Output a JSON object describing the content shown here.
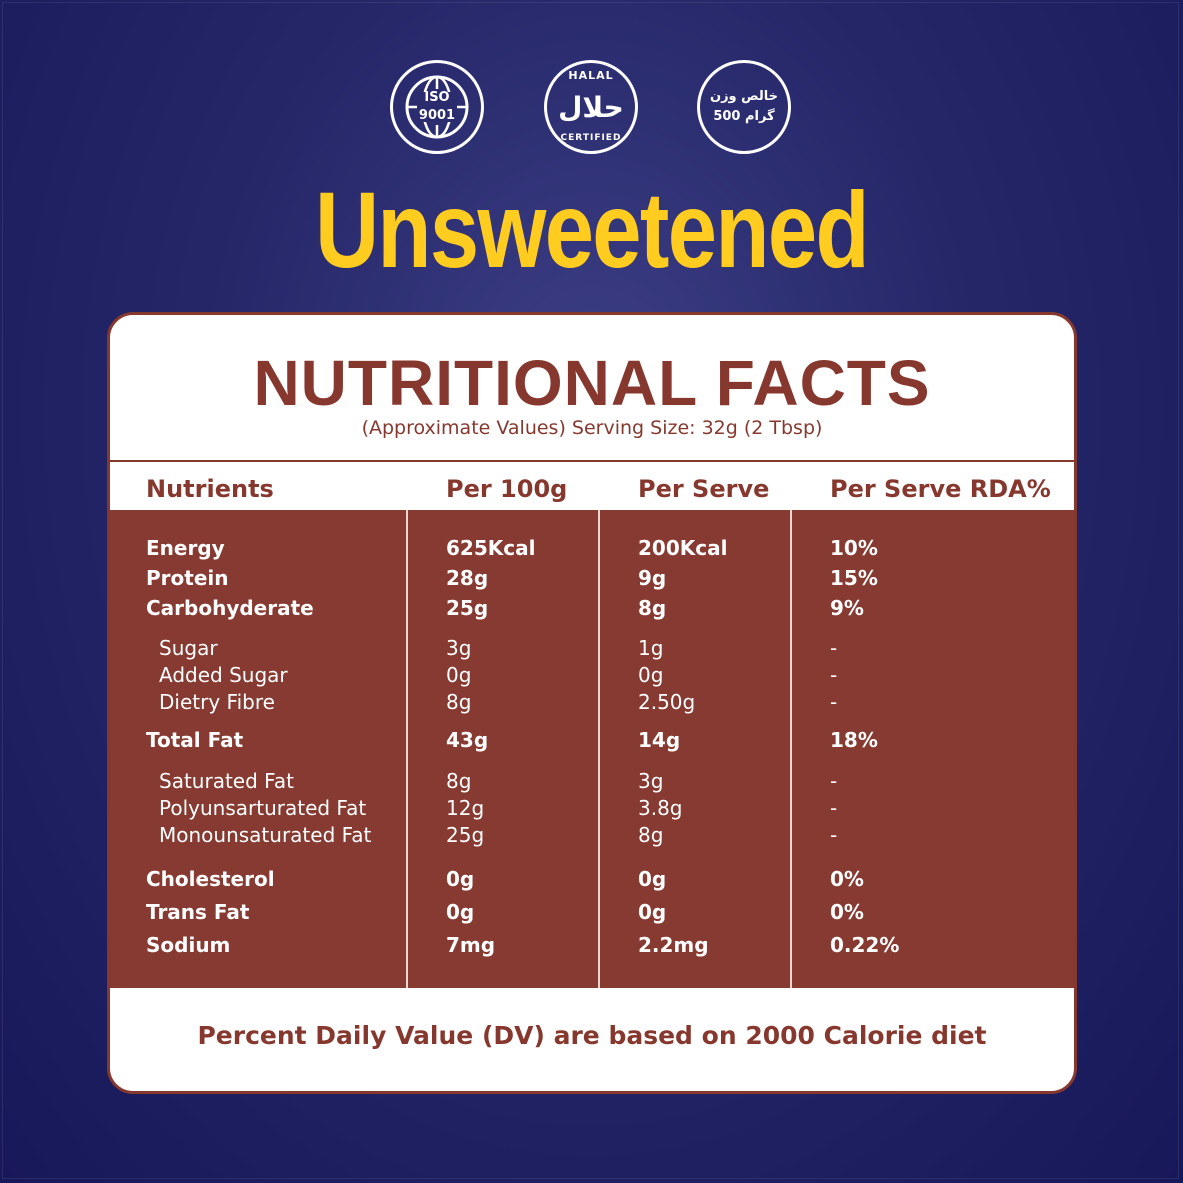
{
  "badges": {
    "iso": [
      "ISO",
      "9001"
    ],
    "halal": {
      "top": "HALAL",
      "arabic": "حلال",
      "bottom": "CERTIFIED"
    },
    "weight": [
      "خالص وزن",
      "500 گرام"
    ]
  },
  "headline": "Unsweetened",
  "card": {
    "title": "NUTRITIONAL FACTS",
    "subtitle": "(Approximate Values) Serving Size: 32g (2 Tbsp)",
    "headers": [
      "Nutrients",
      "Per 100g",
      "Per Serve",
      "Per Serve RDA%"
    ],
    "rows": [
      {
        "n": "Energy",
        "a": "625Kcal",
        "b": "200Kcal",
        "c": "10%"
      },
      {
        "n": "Protein",
        "a": "28g",
        "b": "9g",
        "c": "15%"
      },
      {
        "n": "Carbohyderate",
        "a": "25g",
        "b": "8g",
        "c": "9%"
      },
      {
        "n": "Sugar",
        "a": "3g",
        "b": "1g",
        "c": "-"
      },
      {
        "n": "Added Sugar",
        "a": "0g",
        "b": "0g",
        "c": "-"
      },
      {
        "n": "Dietry Fibre",
        "a": "8g",
        "b": "2.50g",
        "c": "-"
      },
      {
        "n": "Total Fat",
        "a": "43g",
        "b": "14g",
        "c": "18%"
      },
      {
        "n": "Saturated Fat",
        "a": "8g",
        "b": "3g",
        "c": "-"
      },
      {
        "n": "Polyunsarturated Fat",
        "a": "12g",
        "b": "3.8g",
        "c": "-"
      },
      {
        "n": "Monounsaturated Fat",
        "a": "25g",
        "b": "8g",
        "c": "-"
      },
      {
        "n": "Cholesterol",
        "a": "0g",
        "b": "0g",
        "c": "0%"
      },
      {
        "n": "Trans Fat",
        "a": "0g",
        "b": "0g",
        "c": "0%"
      },
      {
        "n": "Sodium",
        "a": "7mg",
        "b": "2.2mg",
        "c": "0.22%"
      }
    ],
    "footer": "Percent Daily Value (DV) are based on 2000 Calorie diet"
  },
  "colors": {
    "background": "#252769",
    "headline": "#ffcc1f",
    "accent": "#87382e",
    "panel": "#873a31"
  },
  "icons": [
    "globe-icon",
    "halal-seal-icon",
    "weight-seal-icon"
  ]
}
